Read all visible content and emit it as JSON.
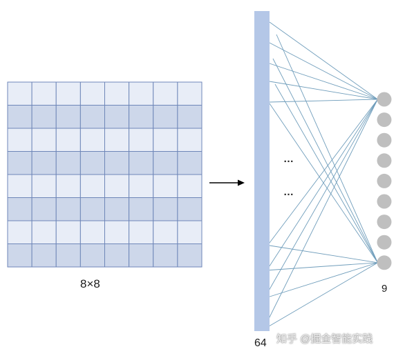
{
  "diagram": {
    "grid": {
      "rows": 8,
      "cols": 8,
      "label": "8×8",
      "colors": {
        "light": "#e8edf7",
        "dark": "#cdd7ea",
        "line": "#6e86b8"
      }
    },
    "input_layer": {
      "label": "64",
      "color": "#b4c7e7"
    },
    "output_layer": {
      "node_count": 9,
      "label": "9",
      "node_color": "#bfbfbf"
    },
    "ellipsis": "…",
    "connection_color": "#6f9dbb",
    "arrow_color": "#000000"
  },
  "watermark": "知乎 @掘金智能实践"
}
